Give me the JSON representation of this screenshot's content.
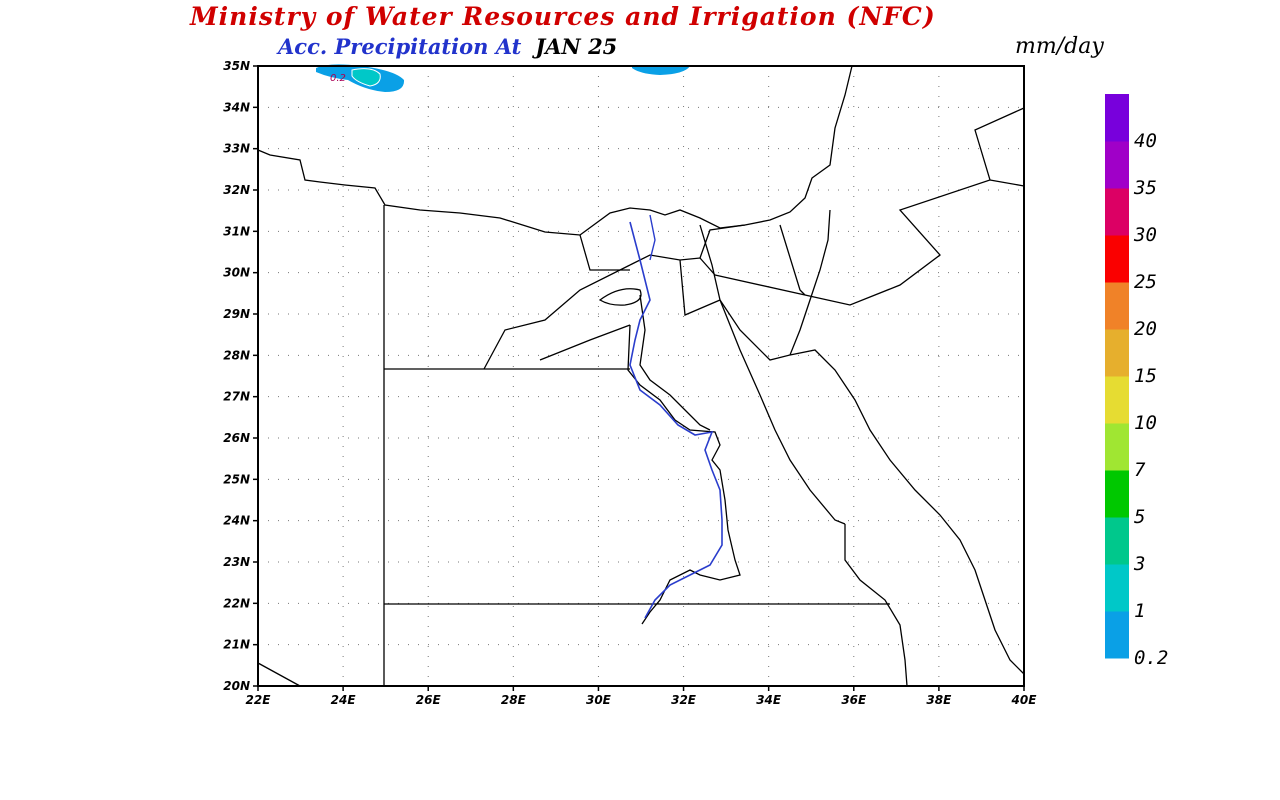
{
  "header": {
    "title": "Ministry of Water Resources and Irrigation (NFC)",
    "subtitle_label": "Acc. Precipitation  At",
    "date": "JAN 25",
    "units": "mm/day"
  },
  "map": {
    "lon_labels": [
      "22E",
      "24E",
      "26E",
      "28E",
      "30E",
      "32E",
      "34E",
      "36E",
      "38E",
      "40E"
    ],
    "lat_labels": [
      "20N",
      "21N",
      "22N",
      "23N",
      "24N",
      "25N",
      "26N",
      "27N",
      "28N",
      "29N",
      "30N",
      "31N",
      "32N",
      "33N",
      "34N",
      "35N"
    ],
    "contour_label": "0.2"
  },
  "colorbar": {
    "colors": [
      "#0aa0e6",
      "#00c8c8",
      "#00c88c",
      "#00c800",
      "#a0e632",
      "#e6dc32",
      "#e6af2d",
      "#f08228",
      "#fa0000",
      "#dc0064",
      "#a000c8",
      "#7800dc"
    ],
    "labels": [
      "0.2",
      "1",
      "3",
      "5",
      "7",
      "10",
      "15",
      "20",
      "25",
      "30",
      "35",
      "40"
    ]
  }
}
